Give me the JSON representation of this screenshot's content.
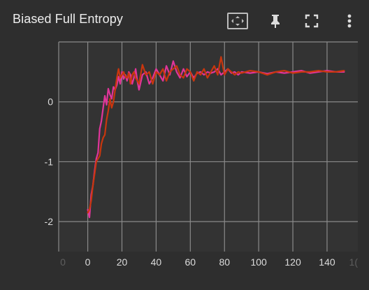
{
  "card": {
    "title": "Biased Full Entropy",
    "toolbar": {
      "fit_icon": "fit-to-data-icon",
      "pin_icon": "pin-icon",
      "fullscreen_icon": "fullscreen-icon",
      "more_icon": "more-vert-icon"
    }
  },
  "chart_data": {
    "type": "line",
    "title": "Biased Full Entropy",
    "xlabel": "",
    "ylabel": "",
    "xlim": [
      -17,
      158
    ],
    "ylim": [
      -2.5,
      1.0
    ],
    "xticks": [
      0,
      20,
      40,
      60,
      80,
      100,
      120,
      140
    ],
    "xticks_partial": [
      "0",
      "1("
    ],
    "yticks": [
      0,
      -1,
      -2
    ],
    "grid": true,
    "colors": {
      "background": "#2e2e2e",
      "plot_bg": "#333333",
      "grid": "#8a8a8a"
    },
    "series": [
      {
        "color": "#e0359a",
        "x": [
          0,
          1,
          2,
          3,
          4,
          5,
          6,
          7,
          8,
          9,
          10,
          11,
          12,
          13,
          14,
          15,
          16,
          17,
          18,
          19,
          20,
          21,
          22,
          23,
          24,
          25,
          26,
          27,
          28,
          29,
          30,
          32,
          34,
          36,
          38,
          40,
          42,
          44,
          46,
          48,
          50,
          52,
          54,
          56,
          58,
          60,
          62,
          64,
          66,
          68,
          70,
          72,
          74,
          76,
          78,
          80,
          82,
          84,
          86,
          88,
          90,
          95,
          100,
          105,
          110,
          115,
          120,
          125,
          130,
          135,
          140,
          145,
          150
        ],
        "y": [
          -1.8,
          -1.93,
          -1.55,
          -1.4,
          -1.15,
          -0.95,
          -0.85,
          -0.45,
          -0.32,
          -0.1,
          0.1,
          -0.05,
          0.22,
          0.12,
          0.05,
          0.25,
          0.2,
          0.28,
          0.42,
          0.3,
          0.5,
          0.38,
          0.45,
          0.35,
          0.5,
          0.45,
          0.3,
          0.4,
          0.55,
          0.35,
          0.2,
          0.45,
          0.5,
          0.3,
          0.4,
          0.55,
          0.45,
          0.35,
          0.6,
          0.45,
          0.68,
          0.5,
          0.4,
          0.55,
          0.42,
          0.5,
          0.4,
          0.48,
          0.5,
          0.45,
          0.5,
          0.48,
          0.5,
          0.55,
          0.45,
          0.5,
          0.55,
          0.48,
          0.5,
          0.45,
          0.5,
          0.48,
          0.5,
          0.47,
          0.5,
          0.48,
          0.5,
          0.52,
          0.48,
          0.5,
          0.52,
          0.5,
          0.5
        ]
      },
      {
        "color": "#c9360e",
        "x": [
          0,
          1,
          2,
          3,
          4,
          5,
          6,
          7,
          8,
          9,
          10,
          11,
          12,
          13,
          14,
          15,
          16,
          17,
          18,
          19,
          20,
          21,
          22,
          23,
          24,
          25,
          26,
          27,
          28,
          29,
          30,
          32,
          34,
          36,
          38,
          40,
          42,
          44,
          46,
          48,
          50,
          52,
          54,
          56,
          58,
          60,
          62,
          64,
          66,
          68,
          70,
          72,
          74,
          76,
          78,
          80,
          82,
          84,
          86,
          88,
          90,
          95,
          100,
          105,
          110,
          115,
          120,
          125,
          130,
          135,
          140,
          145,
          150
        ],
        "y": [
          -1.85,
          -1.8,
          -1.65,
          -1.4,
          -1.2,
          -1.0,
          -0.95,
          -0.9,
          -0.7,
          -0.6,
          -0.55,
          -0.3,
          -0.15,
          0.05,
          -0.1,
          0.0,
          0.2,
          0.4,
          0.55,
          0.4,
          0.45,
          0.5,
          0.42,
          0.4,
          0.48,
          0.3,
          0.45,
          0.5,
          0.4,
          0.35,
          0.3,
          0.62,
          0.45,
          0.5,
          0.3,
          0.5,
          0.45,
          0.55,
          0.35,
          0.5,
          0.55,
          0.6,
          0.45,
          0.4,
          0.55,
          0.5,
          0.35,
          0.5,
          0.45,
          0.55,
          0.4,
          0.5,
          0.6,
          0.45,
          0.75,
          0.45,
          0.55,
          0.5,
          0.45,
          0.5,
          0.48,
          0.52,
          0.5,
          0.45,
          0.5,
          0.52,
          0.48,
          0.5,
          0.5,
          0.52,
          0.5,
          0.5,
          0.52
        ]
      }
    ]
  }
}
